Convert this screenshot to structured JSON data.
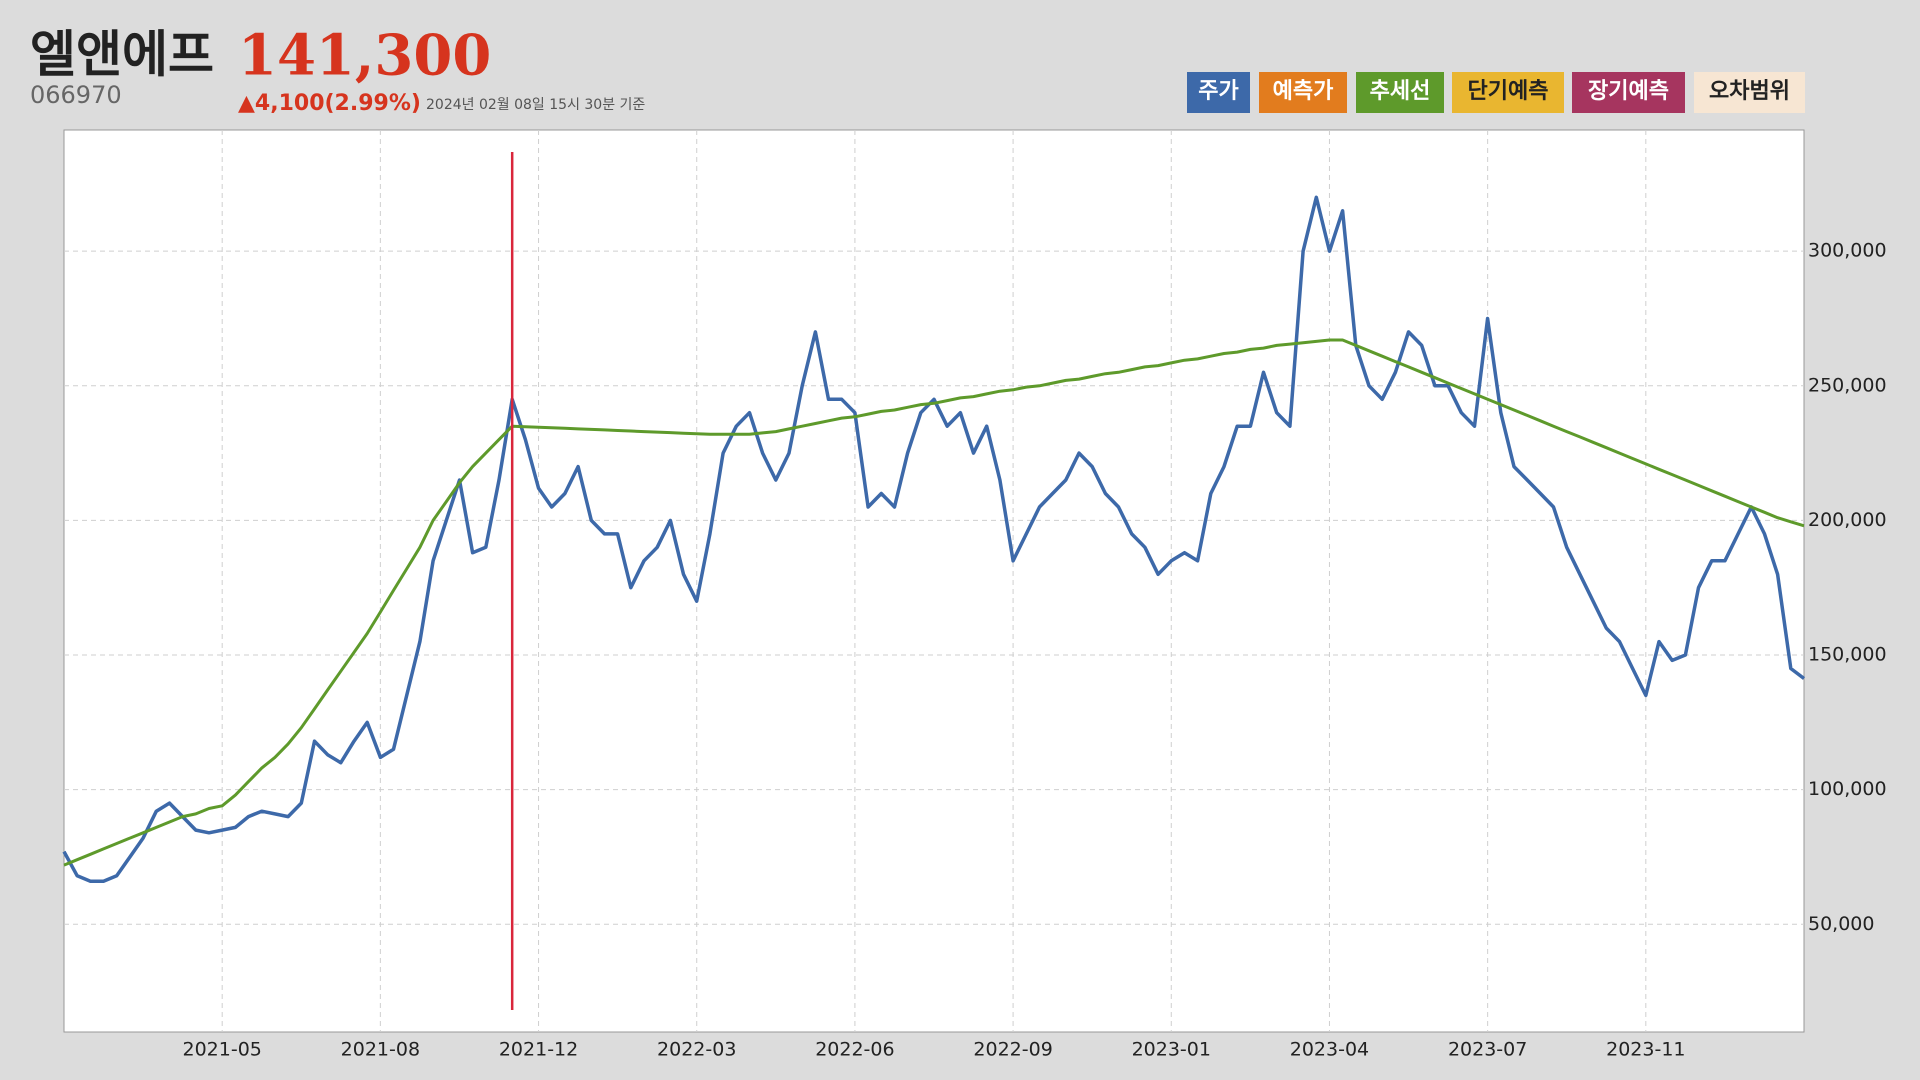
{
  "header": {
    "name": "엘앤에프",
    "price": "141,300",
    "code": "066970",
    "change": "▲4,100(2.99%)",
    "timestamp": "2024년 02월 08일 15시 30분 기준"
  },
  "legend": [
    {
      "name": "주가",
      "color": "#3d69a9",
      "text_color": "#ffffff"
    },
    {
      "name": "예측가",
      "color": "#e27c1e",
      "text_color": "#ffffff"
    },
    {
      "name": "추세선",
      "color": "#5e9a2b",
      "text_color": "#ffffff"
    },
    {
      "name": "단기예측",
      "color": "#e9b630",
      "text_color": "#222222"
    },
    {
      "name": "장기예측",
      "color": "#a6355f",
      "text_color": "#ffffff"
    },
    {
      "name": "오차범위",
      "color": "#f7e6d3",
      "text_color": "#222222"
    }
  ],
  "chart_data": {
    "type": "line",
    "categories": [
      null,
      null,
      null,
      null,
      null,
      null,
      null,
      null,
      null,
      null,
      null,
      null,
      "2021-05",
      null,
      null,
      null,
      null,
      null,
      null,
      null,
      null,
      null,
      null,
      null,
      "2021-08",
      null,
      null,
      null,
      null,
      null,
      null,
      null,
      null,
      null,
      null,
      null,
      "2021-12",
      null,
      null,
      null,
      null,
      null,
      null,
      null,
      null,
      null,
      null,
      null,
      "2022-03",
      null,
      null,
      null,
      null,
      null,
      null,
      null,
      null,
      null,
      null,
      null,
      "2022-06",
      null,
      null,
      null,
      null,
      null,
      null,
      null,
      null,
      null,
      null,
      null,
      "2022-09",
      null,
      null,
      null,
      null,
      null,
      null,
      null,
      null,
      null,
      null,
      null,
      "2023-01",
      null,
      null,
      null,
      null,
      null,
      null,
      null,
      null,
      null,
      null,
      null,
      "2023-04",
      null,
      null,
      null,
      null,
      null,
      null,
      null,
      null,
      null,
      null,
      null,
      "2023-07",
      null,
      null,
      null,
      null,
      null,
      null,
      null,
      null,
      null,
      null,
      null,
      "2023-11",
      null,
      null,
      null,
      null,
      null,
      null,
      null,
      null,
      null,
      null,
      null,
      null
    ],
    "series": [
      {
        "name": "주가",
        "color": "#3d69a9",
        "values": [
          77000,
          68000,
          66000,
          66000,
          68000,
          75000,
          82000,
          92000,
          95000,
          90000,
          85000,
          84000,
          85000,
          86000,
          90000,
          92000,
          91000,
          90000,
          95000,
          118000,
          113000,
          110000,
          118000,
          125000,
          112000,
          115000,
          135000,
          155000,
          185000,
          200000,
          215000,
          188000,
          190000,
          215000,
          245000,
          230000,
          212000,
          205000,
          210000,
          220000,
          200000,
          195000,
          195000,
          175000,
          185000,
          190000,
          200000,
          180000,
          170000,
          195000,
          225000,
          235000,
          240000,
          225000,
          215000,
          225000,
          250000,
          270000,
          245000,
          245000,
          240000,
          205000,
          210000,
          205000,
          225000,
          240000,
          245000,
          235000,
          240000,
          225000,
          235000,
          215000,
          185000,
          195000,
          205000,
          210000,
          215000,
          225000,
          220000,
          210000,
          205000,
          195000,
          190000,
          180000,
          185000,
          188000,
          185000,
          210000,
          220000,
          235000,
          235000,
          255000,
          240000,
          235000,
          300000,
          320000,
          300000,
          315000,
          265000,
          250000,
          245000,
          255000,
          270000,
          265000,
          250000,
          250000,
          240000,
          235000,
          275000,
          240000,
          220000,
          215000,
          210000,
          205000,
          190000,
          180000,
          170000,
          160000,
          155000,
          145000,
          135000,
          155000,
          148000,
          150000,
          175000,
          185000,
          185000,
          195000,
          205000,
          195000,
          180000,
          145000,
          141300
        ]
      },
      {
        "name": "추세선",
        "color": "#5e9a2b",
        "values": [
          72000,
          74000,
          76000,
          78000,
          80000,
          82000,
          84000,
          86000,
          88000,
          90000,
          91000,
          93000,
          94000,
          98000,
          103000,
          108000,
          112000,
          117000,
          123000,
          130000,
          137000,
          144000,
          151000,
          158000,
          166000,
          174000,
          182000,
          190000,
          200000,
          207000,
          214000,
          220000,
          225000,
          230000,
          235000,
          234800,
          234600,
          234400,
          234200,
          234000,
          233800,
          233600,
          233400,
          233200,
          233000,
          232800,
          232600,
          232400,
          232200,
          232000,
          232000,
          232000,
          232000,
          232500,
          233000,
          234000,
          235000,
          236000,
          237000,
          238000,
          238500,
          239500,
          240500,
          241000,
          242000,
          243000,
          243500,
          244500,
          245500,
          246000,
          247000,
          248000,
          248500,
          249500,
          250000,
          251000,
          252000,
          252500,
          253500,
          254500,
          255000,
          256000,
          257000,
          257500,
          258500,
          259500,
          260000,
          261000,
          262000,
          262500,
          263500,
          264000,
          265000,
          265500,
          266000,
          266500,
          267000,
          267000,
          265000,
          263000,
          261000,
          259000,
          257000,
          255000,
          253000,
          251000,
          249000,
          247000,
          245000,
          243000,
          241000,
          239000,
          237000,
          235000,
          233000,
          231000,
          229000,
          227000,
          225000,
          223000,
          221000,
          219000,
          217000,
          215000,
          213000,
          211000,
          209000,
          207000,
          205000,
          203000,
          201000,
          199500,
          198000
        ]
      }
    ],
    "marker_index": 34,
    "marker_color": "#d9263b",
    "ylim": [
      10000,
      345000
    ],
    "yticks": [
      {
        "value": 50000,
        "label": "50,000"
      },
      {
        "value": 100000,
        "label": "100,000"
      },
      {
        "value": 150000,
        "label": "150,000"
      },
      {
        "value": 200000,
        "label": "200,000"
      },
      {
        "value": 250000,
        "label": "250,000"
      },
      {
        "value": 300000,
        "label": "300,000"
      }
    ],
    "grid": true
  }
}
